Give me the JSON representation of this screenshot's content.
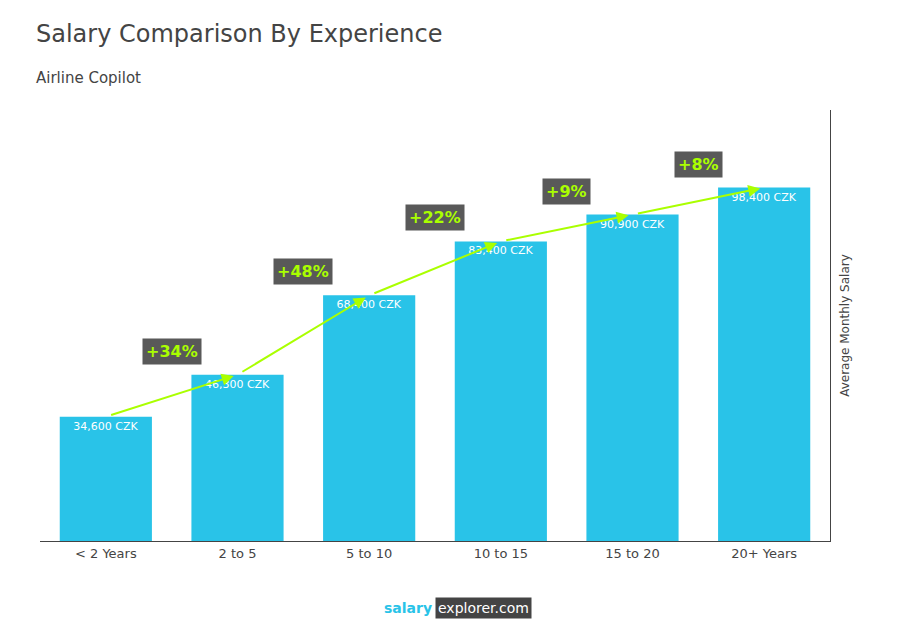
{
  "chart_data": {
    "type": "bar",
    "title": "Salary Comparison By Experience",
    "subtitle": "Airline Copilot",
    "ylabel": "Average Monthly Salary",
    "categories": [
      "< 2 Years",
      "2 to 5",
      "5 to 10",
      "10 to 15",
      "15 to 20",
      "20+ Years"
    ],
    "values": [
      34600,
      46300,
      68400,
      83400,
      90900,
      98400
    ],
    "value_labels": [
      "34,600 CZK",
      "46,300 CZK",
      "68,400 CZK",
      "83,400 CZK",
      "90,900 CZK",
      "98,400 CZK"
    ],
    "data_labels": true,
    "color": "#29C3E8",
    "ylim": [
      0,
      120000
    ],
    "tick_labels": "x",
    "grid": false,
    "annotations": [
      {
        "text": "+34%",
        "color": "#aaff00"
      },
      {
        "text": "+48%",
        "color": "#aaff00"
      },
      {
        "text": "+22%",
        "color": "#aaff00"
      },
      {
        "text": "+9%",
        "color": "#aaff00"
      },
      {
        "text": "+8%",
        "color": "#aaff00"
      }
    ],
    "footer": [
      {
        "text": "salary",
        "color": "#29C3E8"
      },
      {
        "text": "explorer.com",
        "color": "#ffffff"
      }
    ]
  }
}
